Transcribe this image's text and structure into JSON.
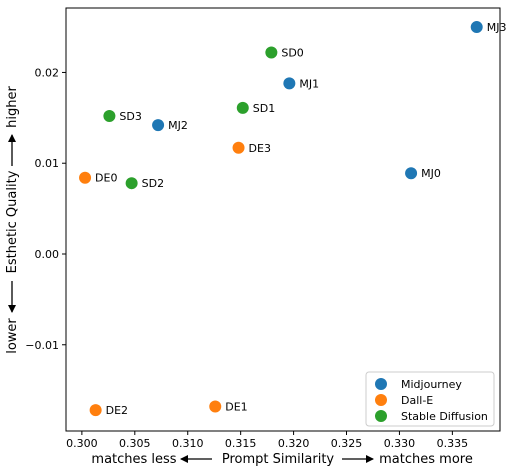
{
  "chart_data": {
    "type": "scatter",
    "xlabel": {
      "left": "matches less",
      "center": "Prompt Similarity",
      "right": "matches more"
    },
    "ylabel": {
      "bottom": "lower",
      "center": "Esthetic Quality",
      "top": "higher"
    },
    "xlim": [
      0.2985,
      0.3395
    ],
    "ylim": [
      -0.0195,
      0.0271
    ],
    "xticks": [
      "0.300",
      "0.305",
      "0.310",
      "0.315",
      "0.320",
      "0.325",
      "0.330",
      "0.335"
    ],
    "xtick_values": [
      0.3,
      0.305,
      0.31,
      0.315,
      0.32,
      0.325,
      0.33,
      0.335
    ],
    "yticks": [
      "0.02",
      "0.01",
      "0.00",
      "−0.01"
    ],
    "ytick_values": [
      0.02,
      0.01,
      0.0,
      -0.01
    ],
    "grid": false,
    "legend_position": "bottom-right",
    "series": [
      {
        "name": "Midjourney",
        "color": "#1f77b4",
        "points": [
          {
            "label": "MJ3",
            "x": 0.3373,
            "y": 0.025
          },
          {
            "label": "MJ1",
            "x": 0.3196,
            "y": 0.0188
          },
          {
            "label": "MJ2",
            "x": 0.3072,
            "y": 0.0142
          },
          {
            "label": "MJ0",
            "x": 0.3311,
            "y": 0.0089
          }
        ]
      },
      {
        "name": "Dall-E",
        "color": "#ff7f0e",
        "points": [
          {
            "label": "DE3",
            "x": 0.3148,
            "y": 0.0117
          },
          {
            "label": "DE0",
            "x": 0.3003,
            "y": 0.0084
          },
          {
            "label": "DE1",
            "x": 0.3126,
            "y": -0.0168
          },
          {
            "label": "DE2",
            "x": 0.3013,
            "y": -0.0172
          }
        ]
      },
      {
        "name": "Stable Diffusion",
        "color": "#2ca02c",
        "points": [
          {
            "label": "SD0",
            "x": 0.3179,
            "y": 0.0222
          },
          {
            "label": "SD1",
            "x": 0.3152,
            "y": 0.0161
          },
          {
            "label": "SD3",
            "x": 0.3026,
            "y": 0.0152
          },
          {
            "label": "SD2",
            "x": 0.3047,
            "y": 0.0078
          }
        ]
      }
    ]
  }
}
